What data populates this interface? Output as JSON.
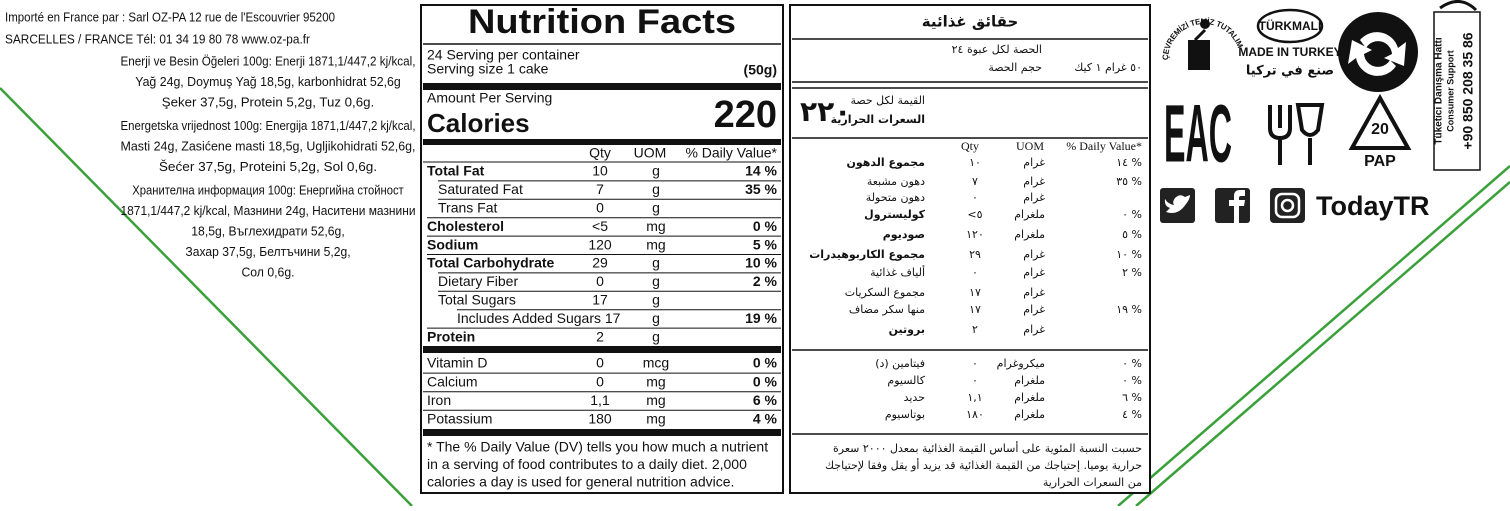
{
  "importer": {
    "lines": [
      "Importé en France par : Sarl OZ-PA 12 rue de l'Escouvrier 95200",
      "SARCELLES / FRANCE Tél: 01 34 19 80 78 www.oz-pa.fr"
    ]
  },
  "composition": [
    {
      "lines": [
        "Enerji ve Besin Öğeleri 100g: Enerji 1871,1/447,2 kj/kcal,",
        "Yağ 24g, Doymuş Yağ 18,5g, karbonhidrat 52,6g",
        "Şeker 37,5g, Protein 5,2g, Tuz 0,6g."
      ]
    },
    {
      "lines": [
        "Energetska vrijednost 100g: Energija 1871,1/447,2 kj/kcal,",
        "Masti 24g, Zasićene masti 18,5g, Ugljikohidrati 52,6g,",
        "Šećer 37,5g, Proteini 5,2g, Sol 0,6g."
      ]
    },
    {
      "lines": [
        "Хранителна информация 100g: Енергийна стойност",
        "1871,1/447,2 kj/kcal, Мазнини 24g, Наситени мазнини",
        "18,5g, Въглехидрати 52,6g,",
        "Захар 37,5g, Белтъчини 5,2g,",
        "Сол 0,6g."
      ]
    }
  ],
  "nutrition_en": {
    "title": "Nutrition Facts",
    "servings": "24 Serving per container",
    "serving_size_label": "Serving size 1 cake",
    "serving_size": "(50g)",
    "amount_per_serving": "Amount Per Serving",
    "calories_label": "Calories",
    "calories": "220",
    "columns": [
      "Qty",
      "UOM",
      "% Daily Value*"
    ],
    "rows": [
      {
        "name": "Total Fat",
        "qty": "10",
        "uom": "g",
        "dv": "14 %",
        "bold": true,
        "indent": 0
      },
      {
        "name": "Saturated Fat",
        "qty": "7",
        "uom": "g",
        "dv": "35 %",
        "bold": false,
        "indent": 1
      },
      {
        "name": "Trans Fat",
        "qty": "0",
        "uom": "g",
        "bold": false,
        "indent": 1
      },
      {
        "name": "Cholesterol",
        "qty": "<5",
        "uom": "mg",
        "dv": "0 %",
        "bold": true,
        "indent": 0
      },
      {
        "name": "Sodium",
        "qty": "120",
        "uom": "mg",
        "dv": "5 %",
        "bold": true,
        "indent": 0
      },
      {
        "name": "Total Carbohydrate",
        "qty": "29",
        "uom": "g",
        "dv": "10 %",
        "bold": true,
        "indent": 0
      },
      {
        "name": "Dietary Fiber",
        "qty": "0",
        "uom": "g",
        "dv": "2 %",
        "bold": false,
        "indent": 1
      },
      {
        "name": "Total Sugars",
        "qty": "17",
        "uom": "g",
        "bold": false,
        "indent": 1
      },
      {
        "name": "Includes Added Sugars 17",
        "uom": "g",
        "dv": "19 %",
        "bold": false,
        "indent": 2
      },
      {
        "name": "Protein",
        "qty": "2",
        "uom": "g",
        "bold": true,
        "indent": 0
      }
    ],
    "vitamins": [
      {
        "name": "Vitamin D",
        "qty": "0",
        "uom": "mcg",
        "dv": "0 %"
      },
      {
        "name": "Calcium",
        "qty": "0",
        "uom": "mg",
        "dv": "0 %"
      },
      {
        "name": "Iron",
        "qty": "1,1",
        "uom": "mg",
        "dv": "6 %"
      },
      {
        "name": "Potassium",
        "qty": "180",
        "uom": "mg",
        "dv": "4 %"
      }
    ],
    "footnote": [
      "* The % Daily Value (DV) tells you how much a nutrient",
      "in a serving of food contributes to a daily diet. 2,000",
      "calories a day is used for general nutrition advice."
    ]
  },
  "nutrition_ar": {
    "title": "حقائق غذائية",
    "servings": "الحصة لكل عبوة ٢٤",
    "serving_size_label": "حجم الحصة",
    "serving_size": "٥٠ غرام ١ كيك",
    "amount_per_serving": "القيمة لكل حصة",
    "calories_label": "السعرات الحرارية",
    "calories": "٢٢٠",
    "columns": [
      "Qty",
      "UOM",
      "% Daily Value*"
    ],
    "rows": [
      {
        "name": "مجموع الدهون",
        "qty": "١٠",
        "uom": "غرام",
        "dv": "١٤ %",
        "bold": true
      },
      {
        "name": "دهون مشبعة",
        "qty": "٧",
        "uom": "غرام",
        "dv": "٣٥ %",
        "bold": false
      },
      {
        "name": "دهون متحولة",
        "qty": "٠",
        "uom": "غرام",
        "bold": false
      },
      {
        "name": "كوليسترول",
        "qty": "<٥",
        "uom": "ملغرام",
        "dv": "٠ %",
        "bold": true
      },
      {
        "name": "صوديوم",
        "qty": "١٢٠",
        "uom": "ملغرام",
        "dv": "٥ %",
        "bold": true
      },
      {
        "name": "مجموع الكاربوهيدرات",
        "qty": "٢٩",
        "uom": "غرام",
        "dv": "١٠ %",
        "bold": true
      },
      {
        "name": "ألياف غذائية",
        "qty": "٠",
        "uom": "غرام",
        "dv": "٢ %",
        "bold": false
      },
      {
        "name": "مجموع السكريات",
        "qty": "١٧",
        "uom": "غرام",
        "bold": false
      },
      {
        "name": "منها سكر مضاف",
        "qty": "١٧",
        "uom": "غرام",
        "dv": "١٩ %",
        "bold": false
      },
      {
        "name": "بروتين",
        "qty": "٢",
        "uom": "غرام",
        "bold": true
      }
    ],
    "vitamins": [
      {
        "name": "فيتامين (د)",
        "qty": "٠",
        "uom": "ميكروغرام",
        "dv": "٠ %"
      },
      {
        "name": "كالسيوم",
        "qty": "٠",
        "uom": "ملغرام",
        "dv": "٠ %"
      },
      {
        "name": "حديد",
        "qty": "١,١",
        "uom": "ملغرام",
        "dv": "٦ %"
      },
      {
        "name": "بوتاسيوم",
        "qty": "١٨٠",
        "uom": "ملغرام",
        "dv": "٤ %"
      }
    ],
    "footnote": [
      "حسبت النسبة المئوية على أساس القيمة الغذائية بمعدل ٢٠٠٠ سعرة",
      "حرارية يوميا. إحتياجك من القيمة الغذائية قد يزيد أو يقل وفقا لإحتياجك",
      "من السعرات الحرارية"
    ]
  },
  "icons": {
    "clean": "ÇEVREMİZİ TEMİZ TUTALIM",
    "turkmali": "TÜRKMALI",
    "made_in": "MADE IN TURKEY",
    "made_in_ar": "صنع في تركيا",
    "eac": "EAC",
    "pap_number": "20",
    "pap": "PAP",
    "brand": "TodayTR",
    "support_title": "Tüketici Danışma Hattı",
    "support_en": "Consumer Support",
    "phone": "+90 850 208 35 86"
  }
}
